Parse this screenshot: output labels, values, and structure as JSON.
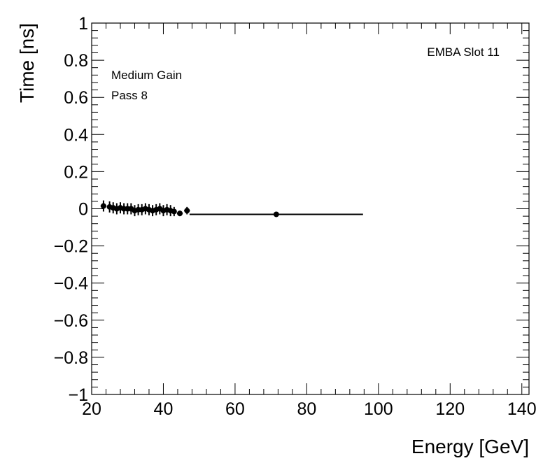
{
  "chart_data": {
    "type": "scatter",
    "xlabel": "Energy [GeV]",
    "ylabel": "Time [ns]",
    "xlim": [
      20,
      142
    ],
    "ylim": [
      -1,
      1
    ],
    "x_major_ticks": [
      20,
      40,
      60,
      80,
      100,
      120,
      140
    ],
    "x_tick_labels": [
      "20",
      "40",
      "60",
      "80",
      "100",
      "120",
      "140"
    ],
    "y_major_ticks": [
      -1,
      -0.8,
      -0.6,
      -0.4,
      -0.2,
      0,
      0.2,
      0.4,
      0.6,
      0.8,
      1
    ],
    "y_tick_labels": [
      "−1",
      "−0.8",
      "−0.6",
      "−0.4",
      "−0.2",
      "0",
      "0.2",
      "0.4",
      "0.6",
      "0.8",
      "1"
    ],
    "grid": false,
    "annotations": {
      "label": "EMBA Slot 11",
      "gain": "Medium Gain",
      "pass": "Pass 8"
    },
    "series": [
      {
        "points": [
          {
            "x": 23.3,
            "y": 0.015,
            "xerr": 0.8,
            "yerr": 0.03
          },
          {
            "x": 25.0,
            "y": 0.01,
            "xerr": 0.5,
            "yerr": 0.03
          },
          {
            "x": 26.0,
            "y": 0.005,
            "xerr": 0.5,
            "yerr": 0.03
          },
          {
            "x": 27.0,
            "y": 0.0,
            "xerr": 0.5,
            "yerr": 0.03
          },
          {
            "x": 28.0,
            "y": 0.005,
            "xerr": 0.5,
            "yerr": 0.03
          },
          {
            "x": 29.0,
            "y": 0.0,
            "xerr": 0.5,
            "yerr": 0.03
          },
          {
            "x": 30.0,
            "y": 0.0,
            "xerr": 0.5,
            "yerr": 0.03
          },
          {
            "x": 31.0,
            "y": 0.0,
            "xerr": 0.5,
            "yerr": 0.03
          },
          {
            "x": 32.0,
            "y": -0.01,
            "xerr": 0.5,
            "yerr": 0.03
          },
          {
            "x": 33.0,
            "y": -0.005,
            "xerr": 0.5,
            "yerr": 0.03
          },
          {
            "x": 34.0,
            "y": -0.005,
            "xerr": 0.5,
            "yerr": 0.03
          },
          {
            "x": 35.0,
            "y": 0.0,
            "xerr": 0.5,
            "yerr": 0.03
          },
          {
            "x": 36.0,
            "y": -0.005,
            "xerr": 0.5,
            "yerr": 0.03
          },
          {
            "x": 37.0,
            "y": -0.01,
            "xerr": 0.5,
            "yerr": 0.03
          },
          {
            "x": 38.0,
            "y": -0.005,
            "xerr": 0.5,
            "yerr": 0.03
          },
          {
            "x": 39.0,
            "y": 0.0,
            "xerr": 0.5,
            "yerr": 0.03
          },
          {
            "x": 40.0,
            "y": -0.01,
            "xerr": 0.5,
            "yerr": 0.03
          },
          {
            "x": 41.0,
            "y": -0.005,
            "xerr": 0.5,
            "yerr": 0.03
          },
          {
            "x": 42.0,
            "y": -0.01,
            "xerr": 0.5,
            "yerr": 0.03
          },
          {
            "x": 43.0,
            "y": -0.015,
            "xerr": 0.5,
            "yerr": 0.025
          },
          {
            "x": 44.6,
            "y": -0.025,
            "xerr": 0.8,
            "yerr": 0.015
          },
          {
            "x": 46.6,
            "y": -0.01,
            "xerr": 0.8,
            "yerr": 0.02
          },
          {
            "x": 71.5,
            "y": -0.03,
            "xerr": 24.2,
            "yerr": 0.0
          }
        ]
      }
    ]
  }
}
